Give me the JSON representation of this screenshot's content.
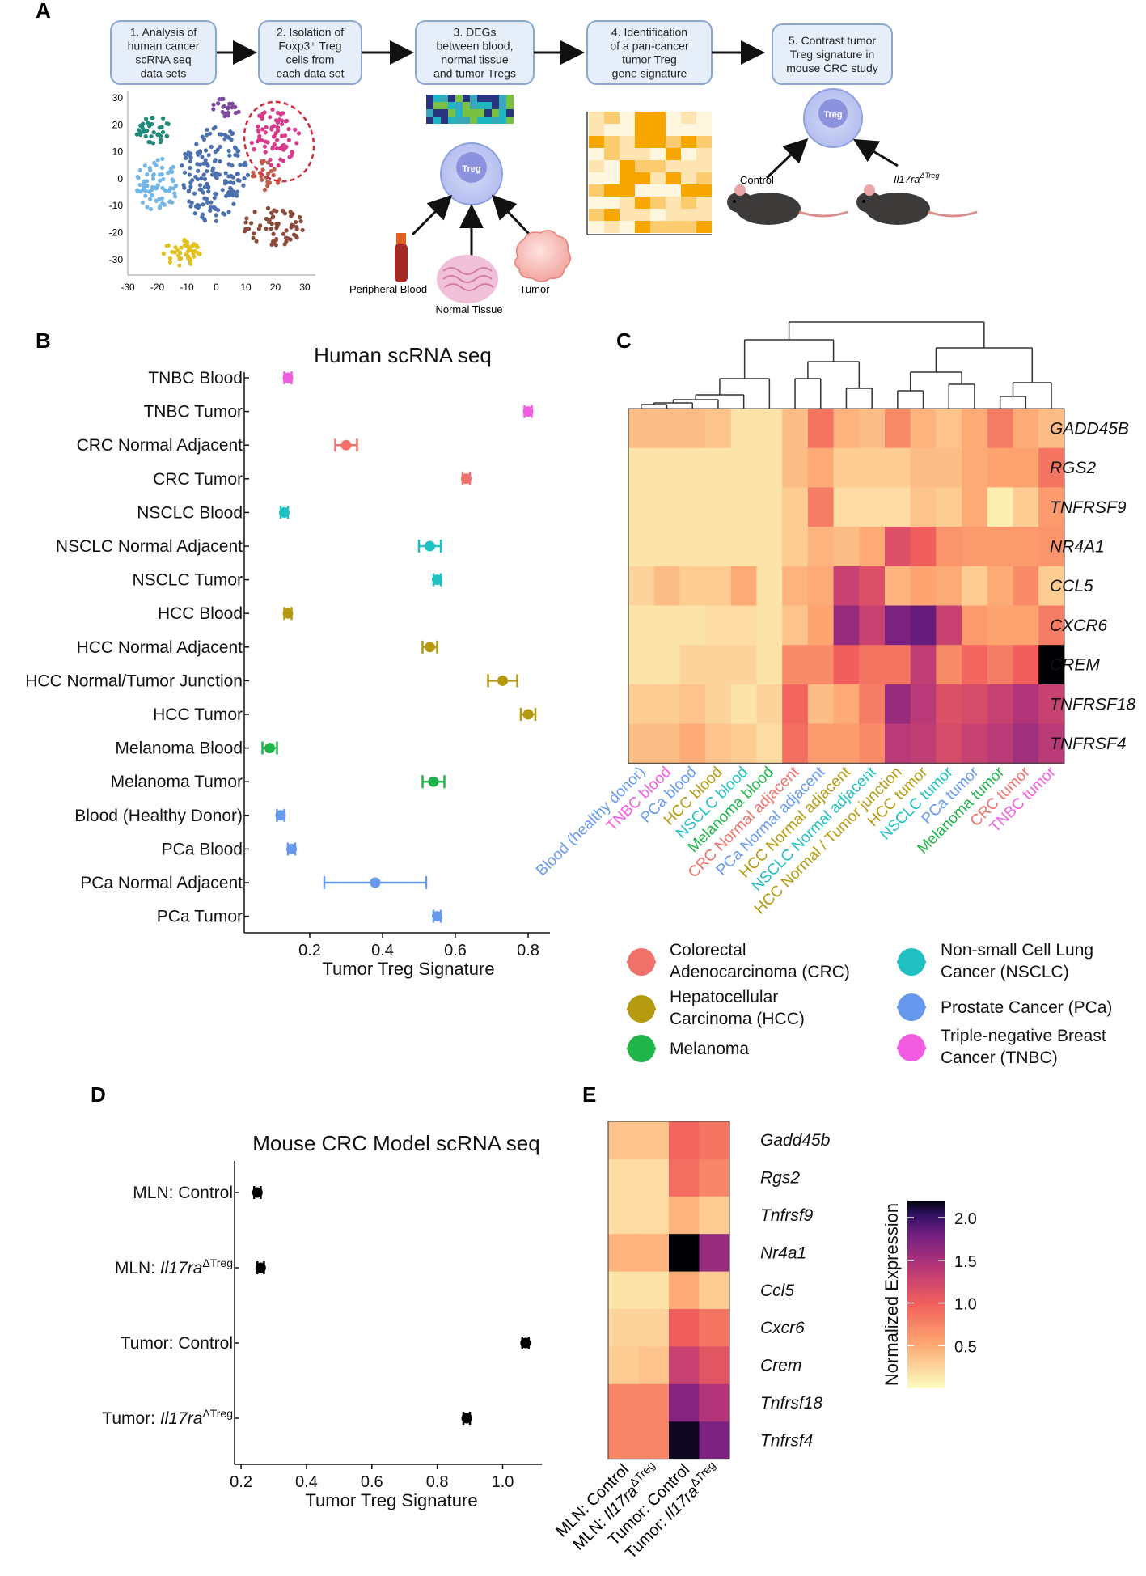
{
  "panels": {
    "a": "A",
    "b": "B",
    "c": "C",
    "d": "D",
    "e": "E"
  },
  "panel_a": {
    "steps": [
      {
        "lines": [
          "1. Analysis of",
          "human cancer",
          "scRNA seq",
          "data sets"
        ]
      },
      {
        "lines": [
          "2. Isolation of",
          "Foxp3⁺ Treg",
          "cells from",
          "each data set"
        ]
      },
      {
        "lines": [
          "3. DEGs",
          "between blood,",
          "normal tissue",
          "and tumor Tregs"
        ]
      },
      {
        "lines": [
          "4. Identification",
          "of a pan-cancer",
          "tumor Treg",
          "gene signature"
        ]
      },
      {
        "lines": [
          "5. Contrast tumor",
          "Treg signature in",
          "mouse CRC study"
        ]
      }
    ],
    "tsne_x_ticks": [
      "-30",
      "-20",
      "-10",
      "0",
      "10",
      "20",
      "30"
    ],
    "tsne_y_ticks": [
      "30",
      "20",
      "10",
      "0",
      "-10",
      "-20",
      "-30"
    ],
    "treg_label": "Treg",
    "peripheral_blood": "Peripheral Blood",
    "normal_tissue": "Normal Tissue",
    "tumor": "Tumor",
    "control": "Control",
    "mouse_ko_base": "Il17ra",
    "mouse_ko_sup": "ΔTreg"
  },
  "chart_data": [
    {
      "type": "scatter",
      "panel": "B",
      "title": "Human scRNA seq",
      "xlabel": "Tumor Treg Signature",
      "xlim": [
        0.02,
        0.86
      ],
      "xticks": [
        0.2,
        0.4,
        0.6,
        0.8
      ],
      "xtick_labels": [
        "0.2",
        "0.4",
        "0.6",
        "0.8"
      ],
      "categories": [
        "TNBC Blood",
        "TNBC Tumor",
        "CRC Normal Adjacent",
        "CRC Tumor",
        "NSCLC Blood",
        "NSCLC Normal Adjacent",
        "NSCLC Tumor",
        "HCC Blood",
        "HCC Normal Adjacent",
        "HCC Normal/Tumor Junction",
        "HCC Tumor",
        "Melanoma Blood",
        "Melanoma Tumor",
        "Blood (Healthy Donor)",
        "PCa Blood",
        "PCa Normal Adjacent",
        "PCa Tumor"
      ],
      "values": [
        0.14,
        0.8,
        0.3,
        0.63,
        0.13,
        0.53,
        0.55,
        0.14,
        0.53,
        0.73,
        0.8,
        0.09,
        0.54,
        0.12,
        0.15,
        0.38,
        0.55
      ],
      "err_low": [
        0.13,
        0.79,
        0.27,
        0.62,
        0.12,
        0.5,
        0.54,
        0.13,
        0.51,
        0.69,
        0.78,
        0.07,
        0.51,
        0.11,
        0.14,
        0.24,
        0.54
      ],
      "err_high": [
        0.15,
        0.81,
        0.33,
        0.64,
        0.14,
        0.56,
        0.56,
        0.15,
        0.55,
        0.77,
        0.82,
        0.11,
        0.57,
        0.13,
        0.16,
        0.52,
        0.56
      ],
      "colors": [
        "#f25ce0",
        "#f25ce0",
        "#f0706a",
        "#f0706a",
        "#1fbfc2",
        "#1fbfc2",
        "#1fbfc2",
        "#b59a10",
        "#b59a10",
        "#b59a10",
        "#b59a10",
        "#1fb54a",
        "#1fb54a",
        "#6699ee",
        "#6699ee",
        "#6699ee",
        "#6699ee"
      ]
    },
    {
      "type": "heatmap",
      "panel": "C",
      "rows": [
        "GADD45B",
        "RGS2",
        "TNFRSF9",
        "NR4A1",
        "CCL5",
        "CXCR6",
        "CREM",
        "TNFRSF18",
        "TNFRSF4"
      ],
      "columns": [
        "Blood (healthy donor)",
        "TNBC blood",
        "PCa blood",
        "HCC blood",
        "NSCLC blood",
        "Melanoma blood",
        "CRC Normal adjacent",
        "PCa Normal adjacent",
        "HCC Normal adjacent",
        "NSCLC Normal adjacent",
        "HCC Normal / Tumor junction",
        "HCC tumor",
        "NSCLC tumor",
        "PCa tumor",
        "Melanoma tumor",
        "CRC tumor",
        "TNBC tumor"
      ],
      "column_colors": [
        "#6699ee",
        "#f25ce0",
        "#6699ee",
        "#b59a10",
        "#1fbfc2",
        "#1fb54a",
        "#f0706a",
        "#6699ee",
        "#b59a10",
        "#1fbfc2",
        "#b59a10",
        "#b59a10",
        "#1fbfc2",
        "#6699ee",
        "#1fb54a",
        "#f0706a",
        "#f25ce0"
      ],
      "values": [
        [
          0.4,
          0.4,
          0.4,
          0.35,
          0.15,
          0.15,
          0.4,
          0.85,
          0.45,
          0.4,
          0.7,
          0.45,
          0.35,
          0.5,
          0.8,
          0.5,
          0.4
        ],
        [
          0.15,
          0.15,
          0.15,
          0.15,
          0.15,
          0.15,
          0.4,
          0.5,
          0.3,
          0.3,
          0.3,
          0.4,
          0.4,
          0.5,
          0.55,
          0.55,
          0.85
        ],
        [
          0.15,
          0.15,
          0.15,
          0.15,
          0.15,
          0.15,
          0.3,
          0.8,
          0.2,
          0.2,
          0.2,
          0.35,
          0.3,
          0.5,
          0.1,
          0.3,
          0.6
        ],
        [
          0.15,
          0.15,
          0.15,
          0.15,
          0.15,
          0.15,
          0.3,
          0.45,
          0.4,
          0.5,
          1.15,
          1.0,
          0.65,
          0.6,
          0.6,
          0.6,
          0.65
        ],
        [
          0.25,
          0.4,
          0.3,
          0.3,
          0.5,
          0.15,
          0.45,
          0.5,
          1.3,
          1.15,
          0.45,
          0.55,
          0.5,
          0.3,
          0.5,
          0.7,
          0.3
        ],
        [
          0.15,
          0.15,
          0.15,
          0.2,
          0.2,
          0.15,
          0.35,
          0.55,
          1.6,
          1.3,
          1.75,
          1.85,
          1.3,
          0.6,
          0.55,
          0.55,
          0.8
        ],
        [
          0.15,
          0.15,
          0.25,
          0.25,
          0.25,
          0.15,
          0.7,
          0.7,
          1.0,
          0.85,
          0.85,
          1.35,
          0.7,
          0.95,
          0.8,
          1.0,
          2.2
        ],
        [
          0.3,
          0.3,
          0.35,
          0.25,
          0.15,
          0.25,
          0.95,
          0.4,
          0.5,
          0.8,
          1.6,
          1.4,
          1.15,
          1.2,
          1.3,
          1.45,
          1.3
        ],
        [
          0.4,
          0.4,
          0.5,
          0.35,
          0.3,
          0.2,
          0.9,
          0.6,
          0.6,
          0.7,
          1.4,
          1.35,
          1.2,
          1.3,
          1.4,
          1.55,
          1.4
        ]
      ]
    },
    {
      "type": "scatter",
      "panel": "D",
      "title": "Mouse CRC Model scRNA seq",
      "xlabel": "Tumor Treg Signature",
      "xlim": [
        0.18,
        1.12
      ],
      "xticks": [
        0.2,
        0.4,
        0.6,
        0.8,
        1.0
      ],
      "xtick_labels": [
        "0.2",
        "0.4",
        "0.6",
        "0.8",
        "1.0"
      ],
      "categories": [
        "MLN: Control",
        "MLN: Il17raΔTreg",
        "Tumor: Control",
        "Tumor: Il17raΔTreg"
      ],
      "values": [
        0.25,
        0.26,
        1.07,
        0.89
      ],
      "err_low": [
        0.24,
        0.25,
        1.06,
        0.88
      ],
      "err_high": [
        0.26,
        0.27,
        1.08,
        0.9
      ],
      "colors": [
        "#000000",
        "#000000",
        "#000000",
        "#000000"
      ]
    },
    {
      "type": "heatmap",
      "panel": "E",
      "rows": [
        "Gadd45b",
        "Rgs2",
        "Tnfrsf9",
        "Nr4a1",
        "Ccl5",
        "Cxcr6",
        "Crem",
        "Tnfrsf18",
        "Tnfrsf4"
      ],
      "columns": [
        "MLN: Control",
        "MLN: Il17raΔTreg",
        "Tumor: Control",
        "Tumor: Il17raΔTreg"
      ],
      "values": [
        [
          0.35,
          0.35,
          0.95,
          0.85
        ],
        [
          0.2,
          0.2,
          0.9,
          0.75
        ],
        [
          0.2,
          0.2,
          0.45,
          0.3
        ],
        [
          0.45,
          0.45,
          2.2,
          1.6
        ],
        [
          0.15,
          0.15,
          0.5,
          0.3
        ],
        [
          0.25,
          0.25,
          1.0,
          0.85
        ],
        [
          0.3,
          0.35,
          1.3,
          1.1
        ],
        [
          0.75,
          0.75,
          1.7,
          1.45
        ],
        [
          0.75,
          0.75,
          2.15,
          1.75
        ]
      ],
      "colorbar": {
        "label": "Normalized Expression",
        "ticks": [
          "0.5",
          "1.0",
          "1.5",
          "2.0"
        ],
        "range": [
          0.0,
          2.2
        ]
      }
    }
  ],
  "legend": [
    {
      "lines": [
        "Colorectal",
        "Adenocarcinoma (CRC)"
      ],
      "color": "#f0706a"
    },
    {
      "lines": [
        "Hepatocellular",
        "Carcinoma (HCC)"
      ],
      "color": "#b59a10"
    },
    {
      "lines": [
        "Melanoma"
      ],
      "color": "#1fb54a"
    },
    {
      "lines": [
        "Non-small Cell Lung",
        "Cancer (NSCLC)"
      ],
      "color": "#1fbfc2"
    },
    {
      "lines": [
        "Prostate Cancer (PCa)"
      ],
      "color": "#6699ee"
    },
    {
      "lines": [
        "Triple-negative Breast",
        "Cancer (TNBC)"
      ],
      "color": "#f25ce0"
    }
  ]
}
